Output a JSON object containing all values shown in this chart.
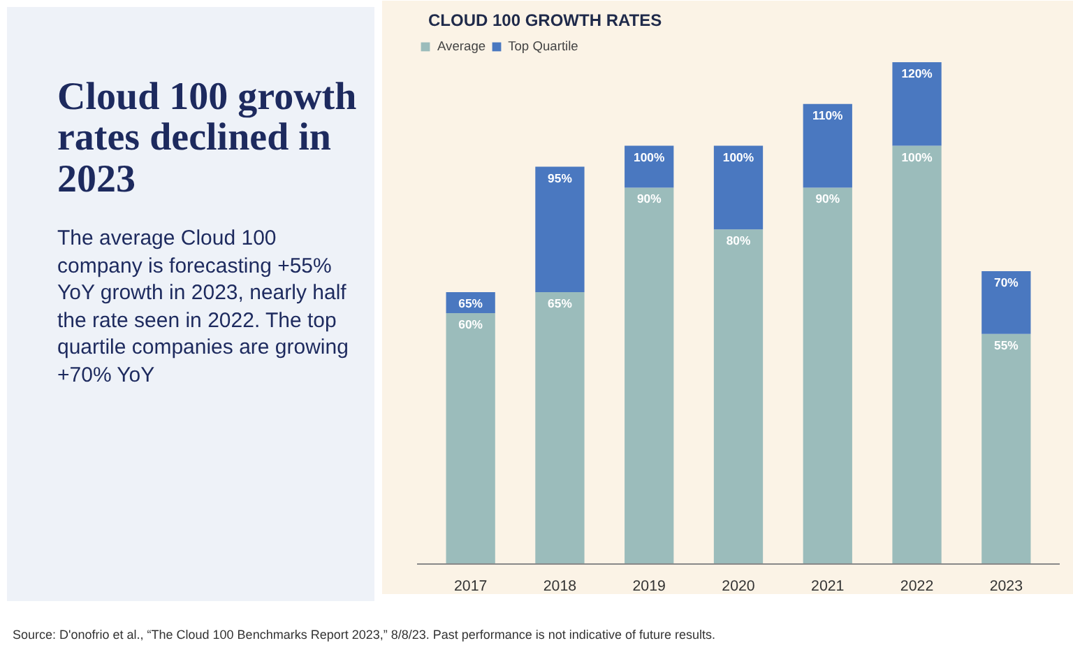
{
  "chart_data": {
    "type": "bar",
    "stacked": true,
    "title": "Cloud 100 growth rates declined in 2023",
    "subtitle": "The average Cloud 100 company is forecasting +55% YoY growth in 2023, nearly half the rate seen in 2022. The top quartile companies are growing +70% YoY",
    "annotations": [
      "CLOUD 100 GROWTH RATES",
      "Source: D'onofrio et al., “The Cloud 100 Benchmarks Report 2023,” 8/8/23. Past performance is not indicative of future results."
    ],
    "categories": [
      "2017",
      "2018",
      "2019",
      "2020",
      "2021",
      "2022",
      "2023"
    ],
    "series": [
      {
        "name": "Average",
        "color": "#9bbcbb",
        "values": [
          60,
          65,
          90,
          80,
          90,
          100,
          55
        ],
        "value_labels": [
          "60%",
          "65%",
          "90%",
          "80%",
          "90%",
          "100%",
          "55%"
        ]
      },
      {
        "name": "Top Quartile",
        "color": "#4a78c0",
        "values": [
          5,
          30,
          10,
          20,
          20,
          20,
          15
        ]
      }
    ],
    "totals": [
      "65%",
      "95%",
      "100%",
      "100%",
      "110%",
      "120%",
      "70%"
    ],
    "legend": "top left",
    "grid": false,
    "tick_labels": "x"
  }
}
